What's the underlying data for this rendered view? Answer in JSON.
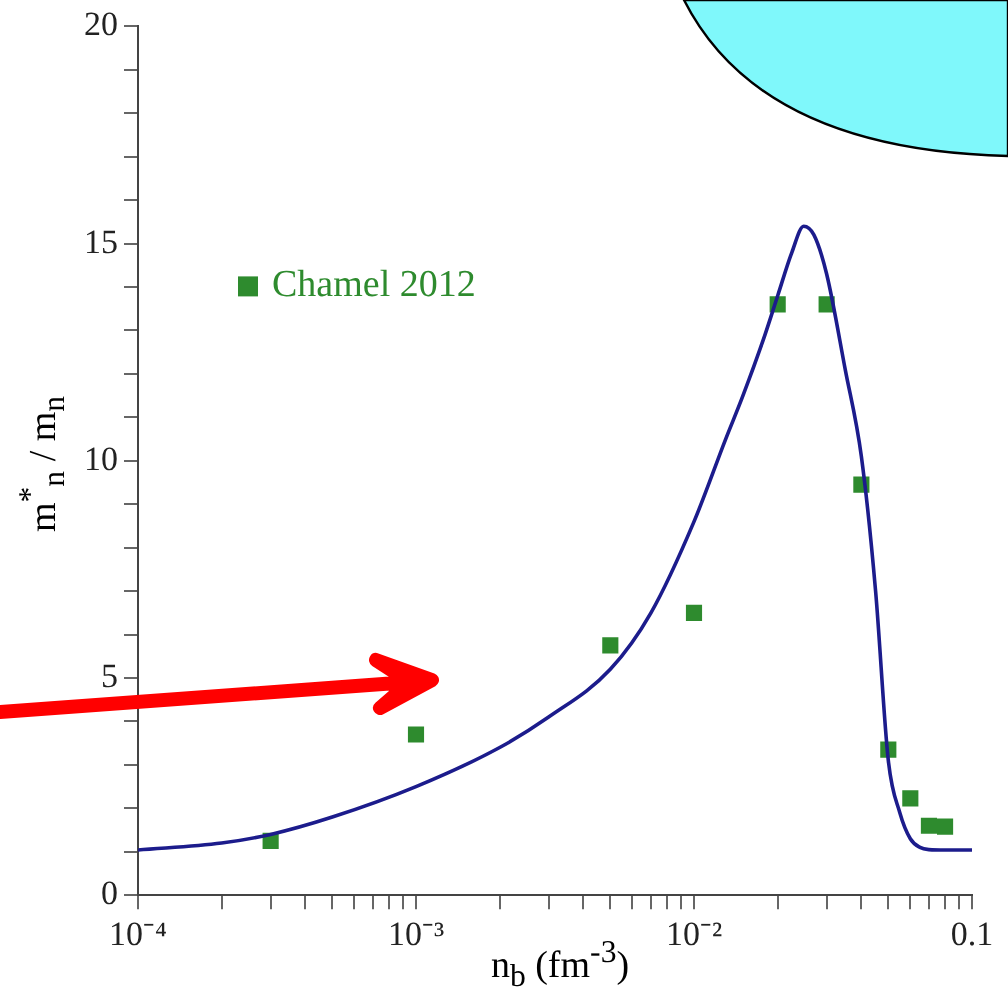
{
  "chart_data": {
    "type": "scatter",
    "xlabel": "n$_{b}$ (fm$^{-3}$)",
    "ylabel": "m$^{*}$$_{n}$ / m$_{n}$",
    "log": "x",
    "legend": "top left",
    "grid": false,
    "xlim": [
      0.0001,
      0.1
    ],
    "ylim": [
      0,
      20
    ],
    "xticks": [
      {
        "value": 0.0001,
        "label": "10⁻⁴"
      },
      {
        "value": 0.0002,
        "label": null
      },
      {
        "value": 0.0003,
        "label": null
      },
      {
        "value": 0.0004,
        "label": null
      },
      {
        "value": 0.0005,
        "label": null
      },
      {
        "value": 0.0006,
        "label": null
      },
      {
        "value": 0.0007,
        "label": null
      },
      {
        "value": 0.0008,
        "label": null
      },
      {
        "value": 0.0009,
        "label": null
      },
      {
        "value": 0.001,
        "label": "10⁻³"
      },
      {
        "value": 0.002,
        "label": null
      },
      {
        "value": 0.003,
        "label": null
      },
      {
        "value": 0.004,
        "label": null
      },
      {
        "value": 0.005,
        "label": null
      },
      {
        "value": 0.006,
        "label": null
      },
      {
        "value": 0.007,
        "label": null
      },
      {
        "value": 0.008,
        "label": null
      },
      {
        "value": 0.009,
        "label": null
      },
      {
        "value": 0.01,
        "label": "10⁻²"
      },
      {
        "value": 0.02,
        "label": null
      },
      {
        "value": 0.03,
        "label": null
      },
      {
        "value": 0.04,
        "label": null
      },
      {
        "value": 0.05,
        "label": null
      },
      {
        "value": 0.06,
        "label": null
      },
      {
        "value": 0.07,
        "label": null
      },
      {
        "value": 0.08,
        "label": null
      },
      {
        "value": 0.09,
        "label": null
      },
      {
        "value": 0.1,
        "label": "0.1"
      }
    ],
    "yticks": [
      0,
      {
        "value": 1,
        "label": null
      },
      {
        "value": 2,
        "label": null
      },
      {
        "value": 3,
        "label": null
      },
      {
        "value": 4,
        "label": null
      },
      5,
      {
        "value": 6,
        "label": null
      },
      {
        "value": 7,
        "label": null
      },
      {
        "value": 8,
        "label": null
      },
      {
        "value": 9,
        "label": null
      },
      10,
      {
        "value": 11,
        "label": null
      },
      {
        "value": 12,
        "label": null
      },
      {
        "value": 13,
        "label": null
      },
      {
        "value": 14,
        "label": null
      },
      15,
      {
        "value": 16,
        "label": null
      },
      {
        "value": 17,
        "label": null
      },
      {
        "value": 18,
        "label": null
      },
      {
        "value": 19,
        "label": null
      },
      20
    ],
    "series": [
      {
        "type": "line",
        "color": "#1c1c8c",
        "marker": "none",
        "line_style": "solid",
        "x": [
          0.0001,
          0.0002,
          0.0003,
          0.0005,
          0.001,
          0.002,
          0.003,
          0.005,
          0.007,
          0.01,
          0.013,
          0.015,
          0.018,
          0.02,
          0.0225,
          0.0248,
          0.027,
          0.03,
          0.035,
          0.04,
          0.045,
          0.05,
          0.055,
          0.06,
          0.065,
          0.07,
          0.08,
          0.1
        ],
        "values": [
          1.04,
          1.2,
          1.4,
          1.8,
          2.5,
          3.4,
          4.1,
          5.2,
          6.5,
          8.6,
          10.5,
          11.5,
          12.9,
          13.8,
          14.8,
          15.4,
          15.2,
          14.3,
          12.1,
          10.1,
          7,
          3.1,
          1.9,
          1.3,
          1.1,
          1.05,
          1.04,
          1.04
        ]
      },
      {
        "type": "scatter",
        "name": "Chamel 2012",
        "color": "#2e8b2e",
        "marker": "square",
        "x": [
          0.0003,
          0.001,
          0.005,
          0.01,
          0.02,
          0.03,
          0.04,
          0.05,
          0.06,
          0.07,
          0.08
        ],
        "values": [
          1.25,
          3.7,
          5.75,
          6.5,
          13.6,
          13.6,
          9.45,
          3.35,
          2.23,
          1.6,
          1.58
        ]
      }
    ]
  }
}
